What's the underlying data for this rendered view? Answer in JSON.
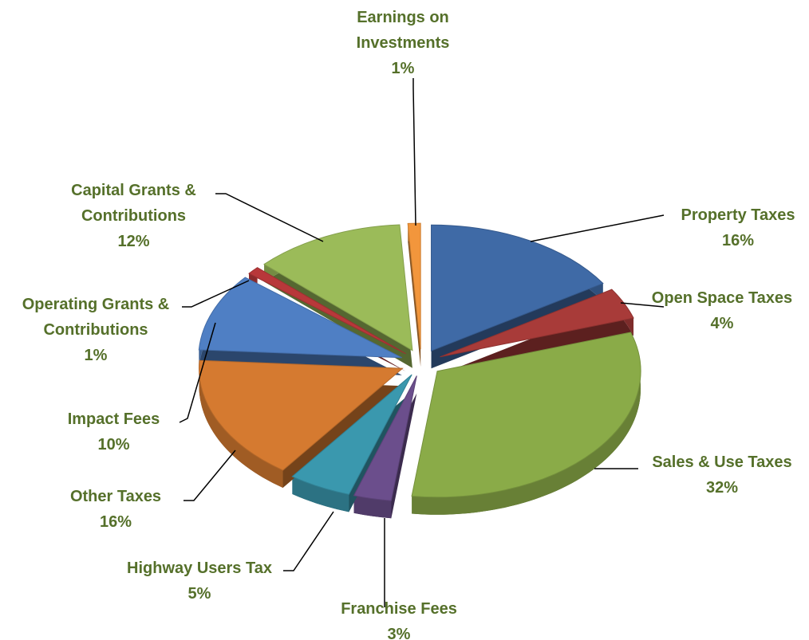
{
  "chart_data": {
    "type": "pie",
    "categories": [
      "Property Taxes",
      "Open Space Taxes",
      "Sales & Use Taxes",
      "Franchise Fees",
      "Highway Users Tax",
      "Other Taxes",
      "Impact Fees",
      "Operating Grants & Contributions",
      "Capital Grants & Contributions",
      "Earnings on Investments"
    ],
    "values": [
      16,
      4,
      32,
      3,
      5,
      16,
      10,
      1,
      12,
      1
    ],
    "value_labels": [
      "16%",
      "4%",
      "32%",
      "3%",
      "5%",
      "16%",
      "10%",
      "1%",
      "12%",
      "1%"
    ],
    "colors": [
      "#3f6aa6",
      "#a83b39",
      "#8aab48",
      "#6b4e8c",
      "#3a98ae",
      "#d57a30",
      "#4f7fc4",
      "#b8383a",
      "#9bbb59",
      "#f2963c"
    ]
  }
}
